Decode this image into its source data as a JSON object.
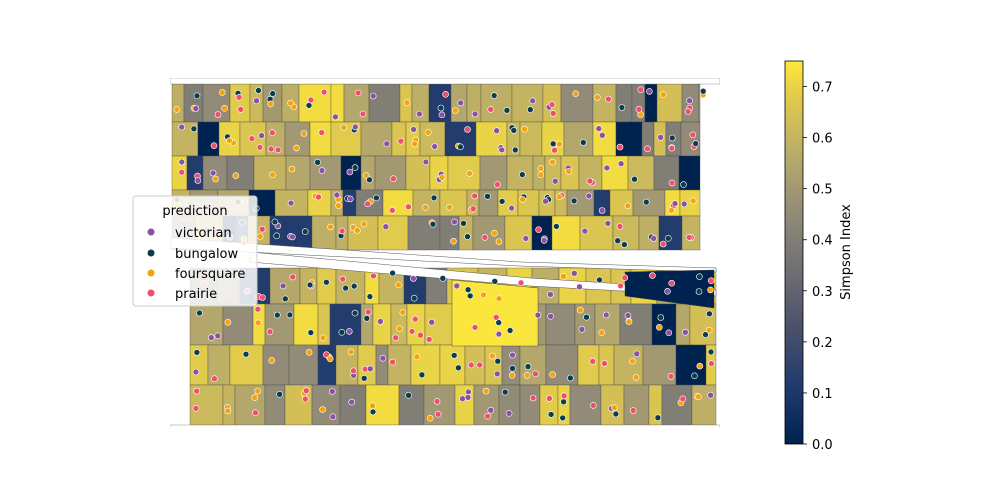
{
  "legend": {
    "title": "prediction",
    "entries": [
      {
        "label": "victorian",
        "color": "#8a52a3"
      },
      {
        "label": "bungalow",
        "color": "#0b3d4c"
      },
      {
        "label": "foursquare",
        "color": "#f5a30a"
      },
      {
        "label": "prairie",
        "color": "#ef4f6a"
      }
    ]
  },
  "colorbar": {
    "label": "Simpson Index",
    "min": 0.0,
    "max": 0.75,
    "ticks": [
      "0.0",
      "0.1",
      "0.2",
      "0.3",
      "0.4",
      "0.5",
      "0.6",
      "0.7"
    ],
    "colormap": "cividis"
  }
}
